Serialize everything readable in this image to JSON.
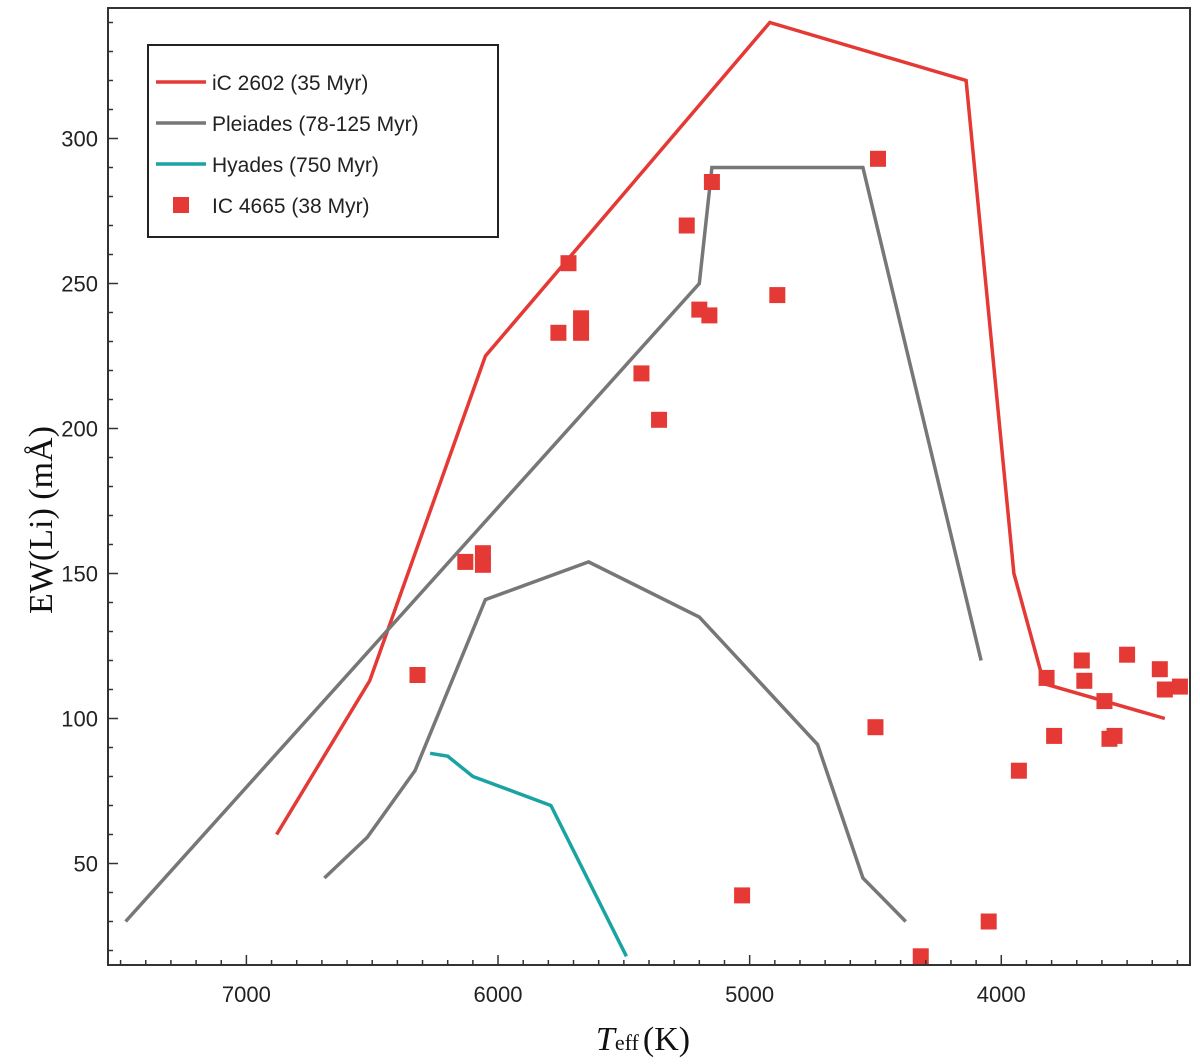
{
  "chart_data": {
    "type": "line",
    "xlabel_main": "T",
    "xlabel_sub": "eff",
    "xlabel_unit": "(K)",
    "ylabel": "EW(Li) (mÅ)",
    "xlim": [
      7550,
      3250
    ],
    "ylim": [
      15,
      345
    ],
    "x_reversed": true,
    "x_ticks": [
      7000,
      6000,
      5000,
      4000
    ],
    "y_ticks": [
      50,
      100,
      150,
      200,
      250,
      300
    ],
    "grid": false,
    "legend_position": "top-left",
    "series": [
      {
        "name": "iC 2602 (35 Myr)",
        "kind": "line",
        "color": "#e53935",
        "segments": [
          [
            [
              6880,
              60
            ],
            [
              6510,
              113
            ],
            [
              6050,
              225
            ],
            [
              4920,
              340
            ],
            [
              4140,
              320
            ],
            [
              3950,
              150
            ],
            [
              3830,
              112
            ],
            [
              3350,
              100
            ]
          ]
        ]
      },
      {
        "name": "Pleiades (78-125 Myr)",
        "kind": "line",
        "color": "#777777",
        "segments": [
          [
            [
              7480,
              30
            ],
            [
              5200,
              250
            ],
            [
              5150,
              290
            ],
            [
              4550,
              290
            ],
            [
              4080,
              120
            ]
          ],
          [
            [
              6690,
              45
            ],
            [
              6520,
              59
            ],
            [
              6330,
              82
            ],
            [
              6050,
              141
            ],
            [
              5640,
              154
            ],
            [
              5200,
              135
            ],
            [
              4730,
              91
            ],
            [
              4550,
              45
            ],
            [
              4380,
              30
            ]
          ]
        ]
      },
      {
        "name": "Hyades (750 Myr)",
        "kind": "line",
        "color": "#1aa3a3",
        "segments": [
          [
            [
              6270,
              88
            ],
            [
              6200,
              87
            ],
            [
              6100,
              80
            ],
            [
              5790,
              70
            ],
            [
              5490,
              18
            ]
          ]
        ]
      },
      {
        "name": "IC 4665 (38 Myr)",
        "kind": "scatter",
        "color": "#e53935",
        "points": [
          [
            6320,
            115
          ],
          [
            6130,
            154
          ],
          [
            6060,
            157
          ],
          [
            6060,
            153
          ],
          [
            5760,
            233
          ],
          [
            5720,
            257
          ],
          [
            5670,
            238
          ],
          [
            5670,
            233
          ],
          [
            5430,
            219
          ],
          [
            5360,
            203
          ],
          [
            5250,
            270
          ],
          [
            5200,
            241
          ],
          [
            5160,
            239
          ],
          [
            5150,
            285
          ],
          [
            4890,
            246
          ],
          [
            5030,
            39
          ],
          [
            4490,
            293
          ],
          [
            4500,
            97
          ],
          [
            4320,
            18
          ],
          [
            4050,
            30
          ],
          [
            3930,
            82
          ],
          [
            3820,
            114
          ],
          [
            3790,
            94
          ],
          [
            3680,
            120
          ],
          [
            3670,
            113
          ],
          [
            3590,
            106
          ],
          [
            3570,
            93
          ],
          [
            3550,
            94
          ],
          [
            3500,
            122
          ],
          [
            3370,
            117
          ],
          [
            3350,
            110
          ],
          [
            3290,
            111
          ]
        ]
      }
    ]
  }
}
